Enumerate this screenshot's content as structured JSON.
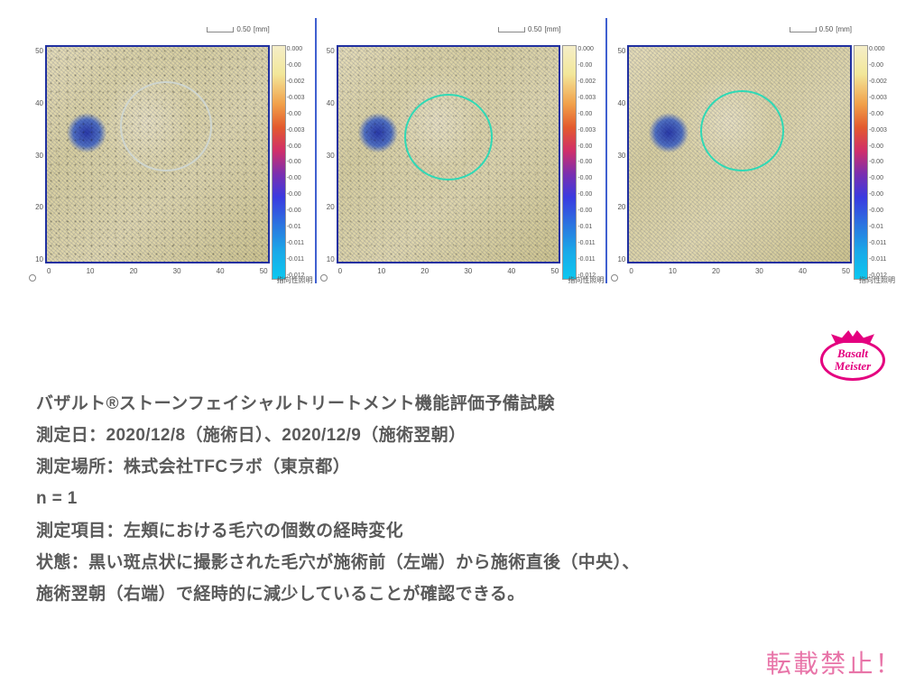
{
  "scale": {
    "value": "0.50",
    "unit": "[mm]"
  },
  "axis": {
    "y_ticks": [
      "50",
      "40",
      "30",
      "20",
      "10"
    ],
    "x_ticks": [
      "0",
      "10",
      "20",
      "30",
      "40",
      "50"
    ],
    "y_label_jp": "指向性照明"
  },
  "colorbar": {
    "gradient": "linear-gradient(to bottom,#f5eec8 0%,#f2e79a 12%,#f1a04a 25%,#e35a2e 35%,#d02f6a 45%,#7a2fb0 55%,#3a3ae0 65%,#2a7ae0 78%,#1aa8e8 88%,#0cc8f0 100%)",
    "ticks": [
      "0.000",
      "-0.00",
      "-0.002",
      "-0.003",
      "-0.00",
      "-0.003",
      "-0.00",
      "-0.00",
      "-0.00",
      "-0.00",
      "-0.00",
      "-0.01",
      "-0.011",
      "-0.011",
      "-0.012"
    ]
  },
  "panels": [
    {
      "dot_opacity": 0.55,
      "roi": {
        "left_pct": 33,
        "top_pct": 16,
        "size_pct": 42,
        "color": "#cfd6d0"
      }
    },
    {
      "dot_opacity": 0.4,
      "roi": {
        "left_pct": 30,
        "top_pct": 22,
        "size_pct": 40,
        "color": "#2fd9b5"
      }
    },
    {
      "dot_opacity": 0.15,
      "roi": {
        "left_pct": 32,
        "top_pct": 20,
        "size_pct": 38,
        "color": "#2fd9b5"
      }
    }
  ],
  "badge": {
    "line1": "Basalt",
    "line2": "Meister"
  },
  "text": {
    "l1": "バザルト®ストーンフェイシャルトリートメント機能評価予備試験",
    "l2": "測定日：2020/12/8（施術日）、2020/12/9（施術翌朝）",
    "l3": "測定場所：株式会社TFCラボ（東京都）",
    "l4": "n = 1",
    "l5": "測定項目：左頬における毛穴の個数の経時変化",
    "l6": "状態：黒い斑点状に撮影された毛穴が施術前（左端）から施術直後（中央）、",
    "l7": "施術翌朝（右端）で経時的に減少していることが確認できる。"
  },
  "watermark": "転載禁止！",
  "colors": {
    "text": "#5a5a5a",
    "accent_pink": "#e4007f",
    "watermark_pink": "#e874a8",
    "panel_divider": "#4060d0"
  }
}
